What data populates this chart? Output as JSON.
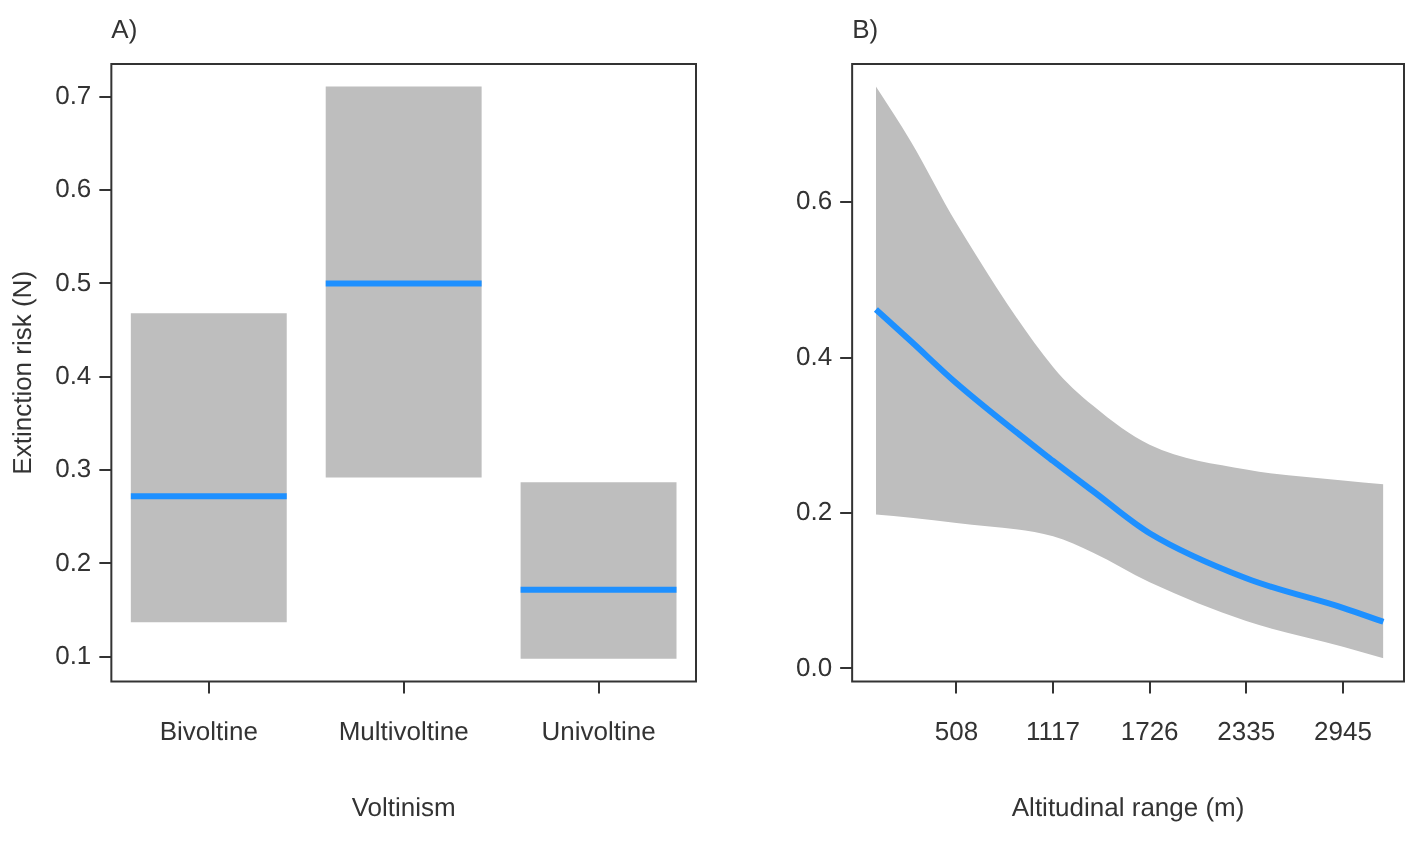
{
  "chart_data": [
    {
      "type": "box",
      "title": "A)",
      "xlabel": "Voltinism",
      "ylabel": "Extinction risk (N)",
      "categories": [
        "Bivoltine",
        "Multivoltine",
        "Univoltine"
      ],
      "ylim": [
        0.0735,
        0.735
      ],
      "yticks": [
        0.1,
        0.2,
        0.3,
        0.4,
        0.5,
        0.6,
        0.7
      ],
      "grid": false,
      "legend": false,
      "series": [
        {
          "color": "#bebebe",
          "boxes": [
            {
              "low": 0.137,
              "q1": 0.137,
              "median": 0.272,
              "q3": 0.468,
              "high": 0.468
            },
            {
              "low": 0.292,
              "q1": 0.292,
              "median": 0.5,
              "q3": 0.711,
              "high": 0.711
            },
            {
              "low": 0.098,
              "q1": 0.098,
              "median": 0.172,
              "q3": 0.287,
              "high": 0.287
            }
          ]
        }
      ]
    },
    {
      "type": "line",
      "title": "B)",
      "xlabel": "Altitudinal range (m)",
      "xlim": [
        -150,
        3330
      ],
      "xticks": [
        508,
        1117,
        1726,
        2335,
        2945
      ],
      "ylim": [
        -0.017,
        0.778
      ],
      "yticks": [
        {
          "value": 0,
          "label": "0.0"
        },
        0.2,
        0.4,
        0.6
      ],
      "grid": false,
      "legend": false,
      "series": [
        {
          "color": "#1e90ff",
          "x": [
            0,
            221,
            508,
            1117,
            1370,
            1726,
            2335,
            2945,
            3200
          ],
          "values": [
            0.462,
            0.421,
            0.367,
            0.267,
            0.228,
            0.174,
            0.116,
            0.078,
            0.06
          ],
          "lower": [
            0.198,
            0.194,
            0.187,
            0.17,
            0.149,
            0.111,
            0.061,
            0.028,
            0.013
          ],
          "upper": [
            0.749,
            0.678,
            0.573,
            0.388,
            0.338,
            0.288,
            0.256,
            0.242,
            0.237
          ]
        }
      ]
    }
  ]
}
